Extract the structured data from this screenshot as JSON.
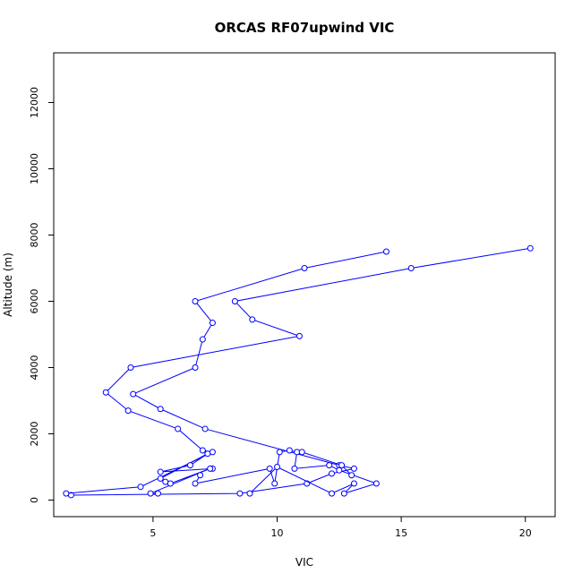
{
  "chart_data": {
    "type": "line",
    "title": "ORCAS RF07upwind VIC",
    "xlabel": "VIC",
    "ylabel": "Altitude (m)",
    "xlim": [
      1,
      21.2
    ],
    "ylim": [
      -500,
      13500
    ],
    "xticks": [
      5,
      10,
      15,
      20
    ],
    "xtick_labels": [
      "5",
      "10",
      "15",
      "20"
    ],
    "yticks": [
      0,
      2000,
      4000,
      6000,
      8000,
      10000,
      12000
    ],
    "ytick_labels": [
      "0",
      "2000",
      "4000",
      "6000",
      "8000",
      "10000",
      "12000"
    ],
    "grid": false,
    "legend": "none",
    "color": "#0000ff",
    "marker": "open-circle",
    "series": [
      {
        "points": [
          [
            14.4,
            7500
          ],
          [
            11.1,
            7000
          ],
          [
            6.7,
            6000
          ],
          [
            7.4,
            5350
          ],
          [
            7.0,
            4850
          ],
          [
            6.7,
            4000
          ],
          [
            4.2,
            3200
          ],
          [
            5.3,
            2750
          ],
          [
            7.1,
            2150
          ],
          [
            12.5,
            1050
          ],
          [
            13.1,
            950
          ],
          [
            12.2,
            800
          ],
          [
            11.2,
            500
          ],
          [
            8.5,
            200
          ],
          [
            1.7,
            150
          ]
        ]
      },
      {
        "points": [
          [
            20.2,
            7600
          ],
          [
            15.4,
            7000
          ],
          [
            8.3,
            6000
          ],
          [
            9.0,
            5450
          ],
          [
            10.9,
            4950
          ],
          [
            4.1,
            4000
          ],
          [
            3.1,
            3250
          ],
          [
            4.0,
            2700
          ],
          [
            6.0,
            2150
          ],
          [
            7.0,
            1500
          ],
          [
            7.4,
            1450
          ],
          [
            4.5,
            400
          ],
          [
            1.5,
            200
          ]
        ]
      },
      {
        "points": [
          [
            7.4,
            950
          ],
          [
            5.3,
            850
          ],
          [
            6.5,
            1050
          ],
          [
            7.2,
            1400
          ],
          [
            5.3,
            650
          ],
          [
            5.5,
            550
          ],
          [
            5.7,
            500
          ],
          [
            7.3,
            950
          ],
          [
            4.9,
            200
          ],
          [
            5.2,
            200
          ]
        ]
      },
      {
        "points": [
          [
            6.9,
            750
          ],
          [
            6.7,
            500
          ],
          [
            9.7,
            950
          ],
          [
            9.9,
            500
          ],
          [
            10.1,
            1450
          ],
          [
            10.5,
            1500
          ],
          [
            10.8,
            1450
          ],
          [
            10.7,
            950
          ],
          [
            12.1,
            1050
          ],
          [
            12.5,
            900
          ],
          [
            14.0,
            500
          ],
          [
            12.7,
            200
          ],
          [
            13.1,
            500
          ],
          [
            12.2,
            200
          ],
          [
            10.0,
            1000
          ],
          [
            8.9,
            200
          ]
        ]
      },
      {
        "points": [
          [
            11.0,
            1450
          ],
          [
            12.6,
            1050
          ],
          [
            13.0,
            750
          ]
        ]
      }
    ]
  }
}
